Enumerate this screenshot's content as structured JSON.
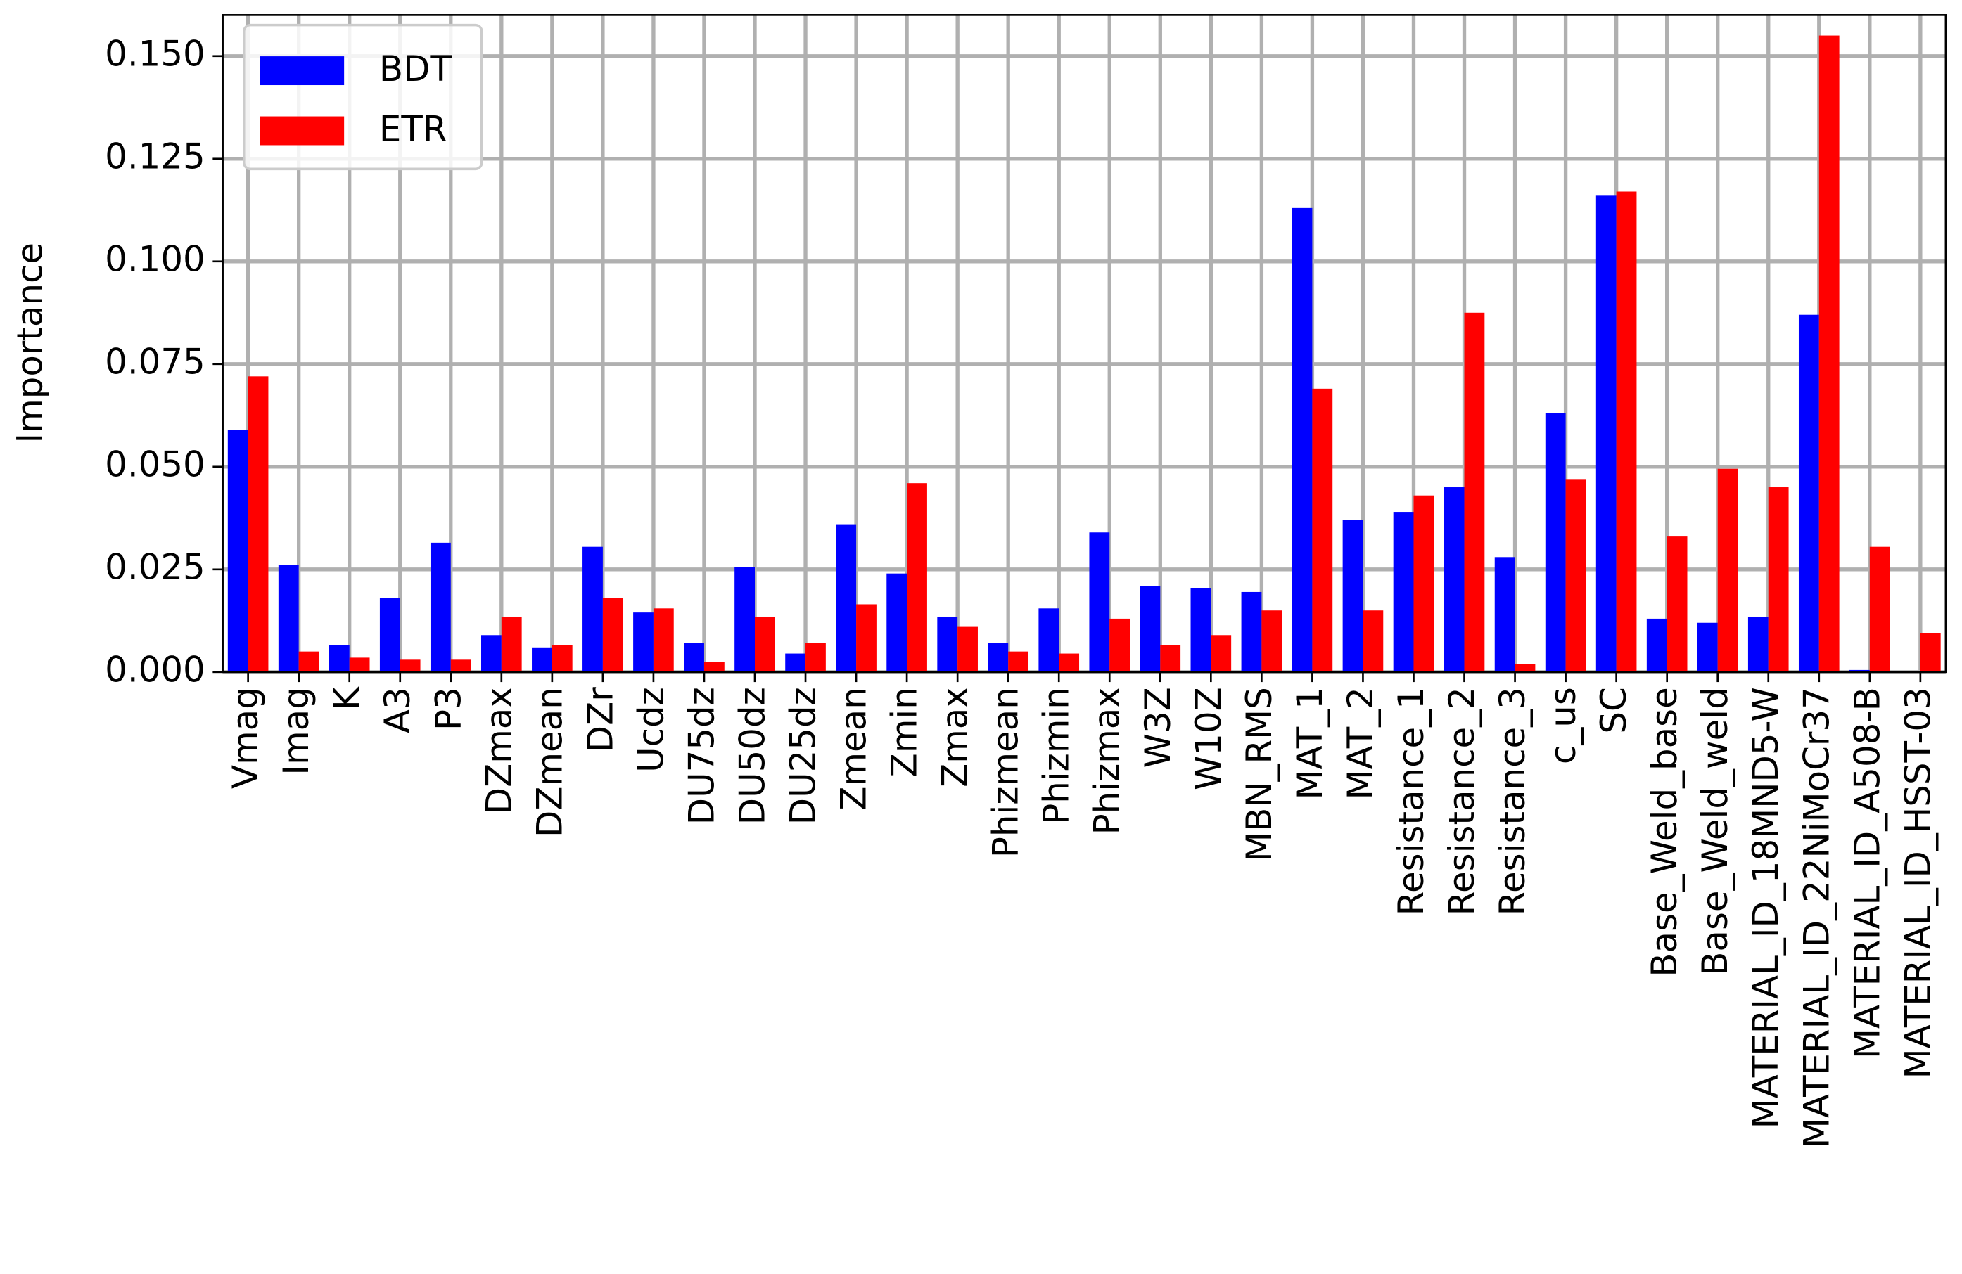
{
  "chart_data": {
    "type": "bar",
    "ylabel": "Importance",
    "categories": [
      "Vmag",
      "Imag",
      "K",
      "A3",
      "P3",
      "DZmax",
      "DZmean",
      "DZr",
      "Ucdz",
      "DU75dz",
      "DU50dz",
      "DU25dz",
      "Zmean",
      "Zmin",
      "Zmax",
      "Phizmean",
      "Phizmin",
      "Phizmax",
      "W3Z",
      "W10Z",
      "MBN_RMS",
      "MAT_1",
      "MAT_2",
      "Resistance_1",
      "Resistance_2",
      "Resistance_3",
      "c_us",
      "SC",
      "Base_Weld_base",
      "Base_Weld_weld",
      "MATERIAL_ID_18MND5-W",
      "MATERIAL_ID_22NiMoCr37",
      "MATERIAL_ID_A508-B",
      "MATERIAL_ID_HSST-03"
    ],
    "series": [
      {
        "name": "BDT",
        "color": "#0000ff",
        "values": [
          0.059,
          0.026,
          0.0065,
          0.018,
          0.0315,
          0.009,
          0.006,
          0.0305,
          0.0145,
          0.007,
          0.0255,
          0.0045,
          0.036,
          0.024,
          0.0135,
          0.007,
          0.0155,
          0.034,
          0.021,
          0.0205,
          0.0195,
          0.113,
          0.037,
          0.039,
          0.045,
          0.028,
          0.063,
          0.116,
          0.013,
          0.012,
          0.0135,
          0.087,
          0.0005,
          0.0003
        ]
      },
      {
        "name": "ETR",
        "color": "#ff0000",
        "values": [
          0.072,
          0.005,
          0.0035,
          0.003,
          0.003,
          0.0135,
          0.0065,
          0.018,
          0.0155,
          0.0025,
          0.0135,
          0.007,
          0.0165,
          0.046,
          0.011,
          0.005,
          0.0045,
          0.013,
          0.0065,
          0.009,
          0.015,
          0.069,
          0.015,
          0.043,
          0.0875,
          0.002,
          0.047,
          0.117,
          0.033,
          0.0495,
          0.045,
          0.155,
          0.0305,
          0.0095
        ]
      }
    ],
    "ylim": [
      0,
      0.16
    ],
    "yticks": [
      {
        "value": 0,
        "label": "0.000"
      },
      {
        "value": 0.025,
        "label": "0.025"
      },
      {
        "value": 0.05,
        "label": "0.050"
      },
      {
        "value": 0.075,
        "label": "0.075"
      },
      {
        "value": 0.1,
        "label": "0.100"
      },
      {
        "value": 0.125,
        "label": "0.125"
      },
      {
        "value": 0.15,
        "label": "0.150"
      }
    ],
    "grid": true,
    "legend": "upper left"
  }
}
